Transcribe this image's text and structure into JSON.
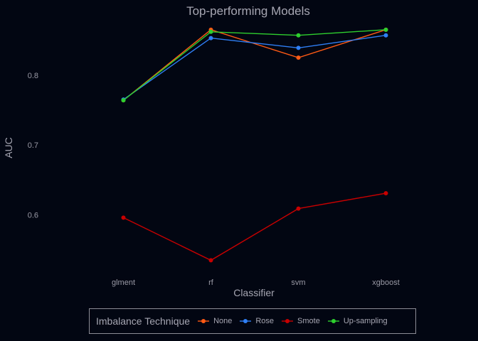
{
  "chart_data": {
    "type": "line",
    "title": "Top-performing Models",
    "xlabel": "Classifier",
    "ylabel": "AUC",
    "categories": [
      "glment",
      "rf",
      "svm",
      "xgboost"
    ],
    "ylim": [
      0.513,
      0.875
    ],
    "yticks": [
      0.6,
      0.7,
      0.8
    ],
    "ytick_labels": [
      "0.6",
      "0.7",
      "0.8"
    ],
    "grid": false,
    "legend_position": "bottom",
    "legend_title": "Imbalance Technique",
    "series": [
      {
        "name": "None",
        "color": "#ff5a14",
        "values": [
          0.764,
          0.865,
          0.825,
          0.865
        ]
      },
      {
        "name": "Rose",
        "color": "#2f7ff5",
        "values": [
          0.765,
          0.853,
          0.839,
          0.857
        ]
      },
      {
        "name": "Smote",
        "color": "#c80000",
        "values": [
          0.596,
          0.535,
          0.609,
          0.631
        ]
      },
      {
        "name": "Up-sampling",
        "color": "#2ecf2e",
        "values": [
          0.764,
          0.862,
          0.857,
          0.865
        ]
      }
    ]
  }
}
